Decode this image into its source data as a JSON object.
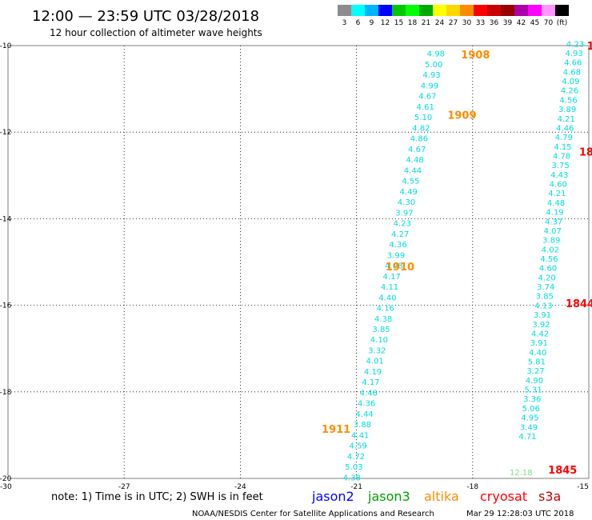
{
  "header": {
    "title": "12:00 — 23:59 UTC 03/28/2018",
    "subtitle": "12 hour collection of altimeter wave heights"
  },
  "color_scale": {
    "labels": [
      "3",
      "6",
      "9",
      "12",
      "15",
      "18",
      "21",
      "24",
      "27",
      "30",
      "33",
      "36",
      "39",
      "42",
      "45",
      "70",
      "(ft)"
    ],
    "colors": [
      "#8c8c8c",
      "#00ffff",
      "#00b4ff",
      "#0000ff",
      "#00c800",
      "#00ff00",
      "#00aa00",
      "#ffff00",
      "#ffd700",
      "#ff8c00",
      "#ff0000",
      "#c80000",
      "#960000",
      "#aa00aa",
      "#ff00ff",
      "#ff96ff",
      "#000000"
    ]
  },
  "axes": {
    "lon_min": -30,
    "lon_max": -15,
    "lat_min": -20,
    "lat_max": -10,
    "x_ticks": [
      {
        "value": -30,
        "label": "-30"
      },
      {
        "value": -27,
        "label": "-27"
      },
      {
        "value": -24,
        "label": "-24"
      },
      {
        "value": -21,
        "label": "-21"
      },
      {
        "value": -18,
        "label": "-18"
      },
      {
        "value": -15,
        "label": "-15"
      }
    ],
    "y_ticks": [
      {
        "value": -10,
        "label": "-10"
      },
      {
        "value": -12,
        "label": "-12"
      },
      {
        "value": -14,
        "label": "-14"
      },
      {
        "value": -16,
        "label": "-16"
      },
      {
        "value": -18,
        "label": "-18"
      },
      {
        "value": -20,
        "label": "-20"
      }
    ],
    "grid": "dotted"
  },
  "tracks": [
    {
      "color": "#00dcdc",
      "start": {
        "lon": -18.95,
        "lat": -10.18
      },
      "end": {
        "lon": -21.12,
        "lat": -19.97
      },
      "values": [
        "4.98",
        "5.00",
        "4.93",
        "4.99",
        "4.67",
        "4.61",
        "5.10",
        "4.82",
        "4.86",
        "4.67",
        "4.48",
        "4.44",
        "4.55",
        "4.49",
        "4.30",
        "3.97",
        "4.23",
        "4.27",
        "4.36",
        "3.99",
        "4.08",
        "4.17",
        "4.11",
        "4.40",
        "4.16",
        "4.38",
        "3.85",
        "4.10",
        "3.32",
        "4.01",
        "4.19",
        "4.17",
        "4.46",
        "4.36",
        "4.44",
        "3.88",
        "4.41",
        "4.59",
        "4.72",
        "5.03",
        "4.38"
      ]
    },
    {
      "color": "#00dcdc",
      "start": {
        "lon": -15.35,
        "lat": -9.95
      },
      "end": {
        "lon": -16.58,
        "lat": -19.02
      },
      "values": [
        "4.23",
        "4.93",
        "4.66",
        "4.68",
        "4.09",
        "4.26",
        "4.56",
        "3.89",
        "4.21",
        "4.46",
        "4.79",
        "4.15",
        "4.78",
        "3.75",
        "4.43",
        "4.60",
        "4.21",
        "4.48",
        "4.19",
        "4.37",
        "4.07",
        "3.89",
        "4.02",
        "4.56",
        "4.60",
        "4.20",
        "3.74",
        "3.85",
        "4.13",
        "3.91",
        "3.92",
        "4.42",
        "3.91",
        "4.40",
        "5.81",
        "3.27",
        "4.90",
        "5.31",
        "3.36",
        "5.06",
        "4.95",
        "3.49",
        "4.71"
      ]
    },
    {
      "color": "#80e080",
      "start": {
        "lon": -16.75,
        "lat": -19.85
      },
      "end": {
        "lon": -16.75,
        "lat": -19.85
      },
      "values": [
        "12.18"
      ]
    }
  ],
  "pass_labels": [
    {
      "text": "1908",
      "lon": -18.3,
      "lat": -10.2,
      "color": "#ff8c00"
    },
    {
      "text": "1909",
      "lon": -18.65,
      "lat": -11.6,
      "color": "#ff8c00"
    },
    {
      "text": "1910",
      "lon": -20.25,
      "lat": -15.1,
      "color": "#ff8c00"
    },
    {
      "text": "1911",
      "lon": -21.9,
      "lat": -18.85,
      "color": "#ff8c00"
    },
    {
      "text": "1",
      "lon": -15.05,
      "lat": -10.0,
      "color": "#ff0000"
    },
    {
      "text": "18",
      "lon": -15.25,
      "lat": -12.45,
      "color": "#ff0000"
    },
    {
      "text": "1844",
      "lon": -15.6,
      "lat": -15.95,
      "color": "#ff0000"
    },
    {
      "text": "1845",
      "lon": -16.05,
      "lat": -19.8,
      "color": "#ff0000"
    }
  ],
  "note": "note:  1) Time is in UTC;  2) SWH is in feet",
  "satellites": [
    {
      "name": "jason2",
      "color": "#0000ff"
    },
    {
      "name": "jason3",
      "color": "#00a000"
    },
    {
      "name": "altika",
      "color": "#ff8c00"
    },
    {
      "name": "cryosat",
      "color": "#ff0000"
    },
    {
      "name": "s3a",
      "color": "#c80000"
    }
  ],
  "footer": {
    "credit": "NOAA/NESDIS Center for Satellite Applications and Research",
    "timestamp": "Mar 29 12:28:03 UTC 2018"
  }
}
